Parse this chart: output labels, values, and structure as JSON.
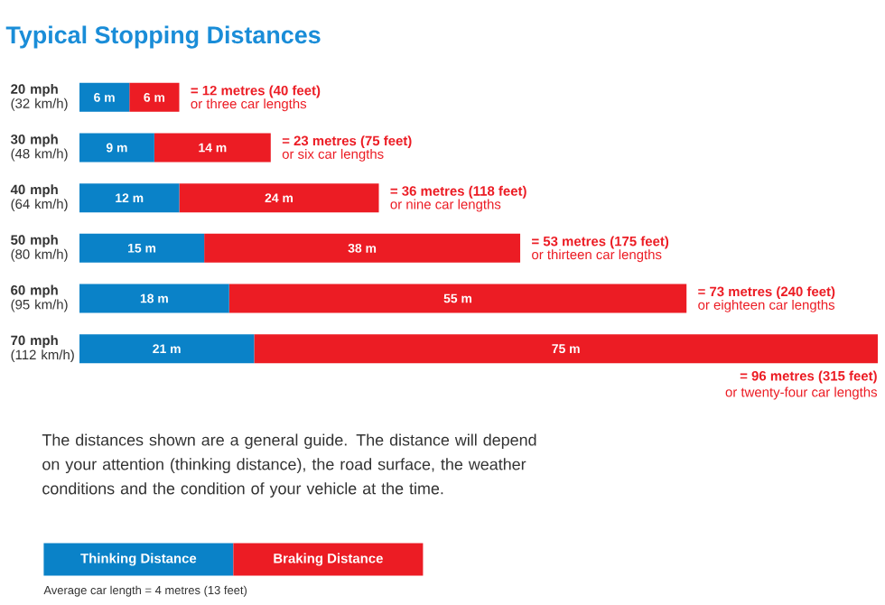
{
  "chart_data": {
    "type": "bar",
    "orientation": "horizontal",
    "stacked": true,
    "title": "Typical Stopping Distances",
    "categories": [
      "**20 mph** (32 km/h)",
      "**30 mph** (48 km/h)",
      "**40 mph** (64 km/h)",
      "**50 mph** (80 km/h)",
      "**60 mph** (95 km/h)",
      "**70 mph** (112 km/h)"
    ],
    "series": [
      {
        "name": "Thinking Distance",
        "color": "#0a82c8",
        "values": [
          6,
          9,
          12,
          15,
          18,
          21
        ],
        "value_labels": [
          "6 m",
          "9 m",
          "12 m",
          "15 m",
          "18 m",
          "21 m"
        ]
      },
      {
        "name": "Braking Distance",
        "color": "#ec1c24",
        "values": [
          6,
          14,
          24,
          38,
          55,
          75
        ],
        "value_labels": [
          "6 m",
          "14 m",
          "24 m",
          "38 m",
          "55 m",
          "75 m"
        ]
      }
    ],
    "totals": [
      "= 12 metres (40 feet)",
      "= 23 metres (75 feet)",
      "= 36 metres (118 feet)",
      "= 53 metres (175 feet)",
      "= 73 metres (240 feet)",
      "= 96 metres (315 feet)"
    ],
    "annotations": [
      "or three car lengths",
      "or six car lengths",
      "or nine car lengths",
      "or thirteen car lengths",
      "or eighteen car lengths",
      "or twenty-four car lengths",
      "The distances shown are a general guide. The distance will depend on your attention (thinking distance), the road surface, the weather conditions and the condition of your vehicle at the time.",
      "Average car length = 4 metres (13 feet)"
    ],
    "legend": "bottom left",
    "tick_labels": "y"
  }
}
